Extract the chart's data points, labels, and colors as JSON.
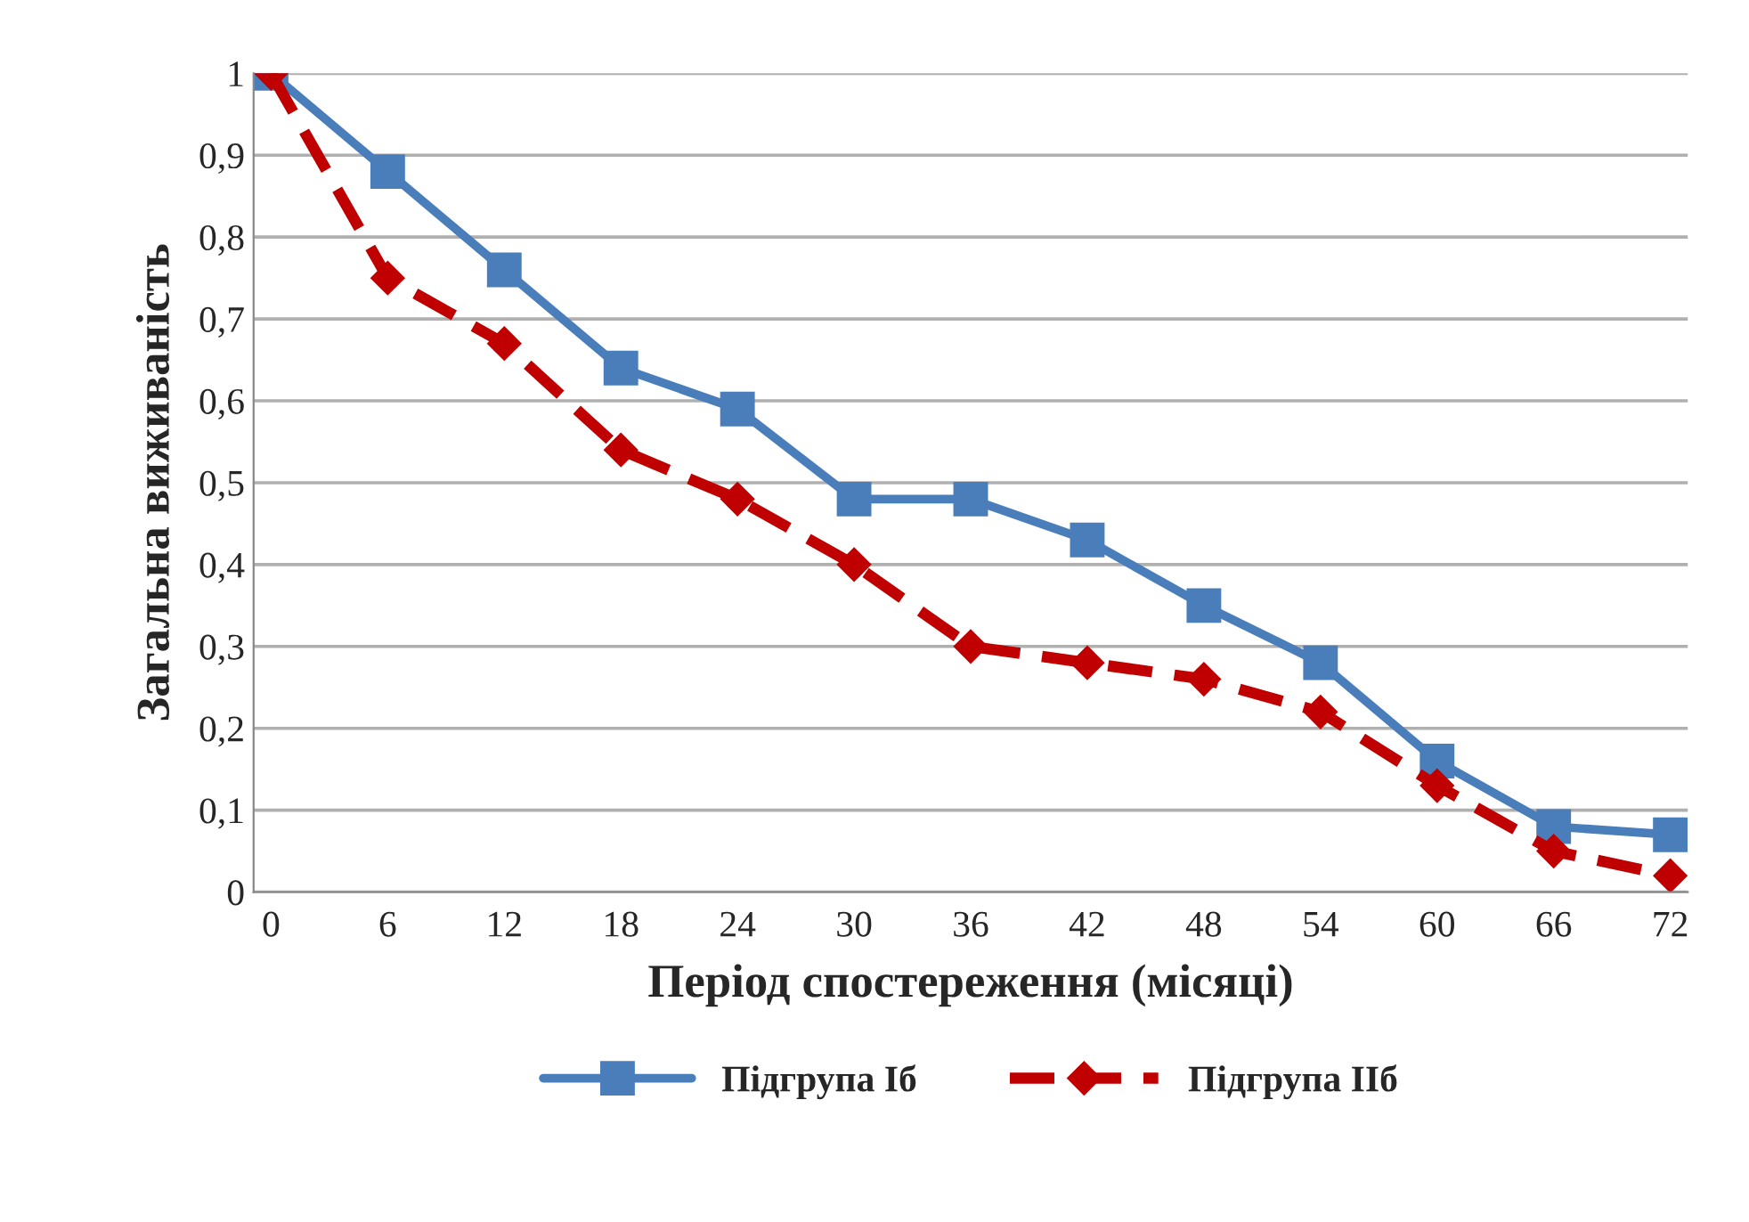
{
  "chart_data": {
    "type": "line",
    "xlabel": "Період спостереження (місяці)",
    "ylabel": "Загальна виживаність",
    "categories": [
      "0",
      "6",
      "12",
      "18",
      "24",
      "30",
      "36",
      "42",
      "48",
      "54",
      "60",
      "66",
      "72"
    ],
    "series": [
      {
        "name": "Підгрупа Іб",
        "color": "#4a7ebb",
        "marker": "square",
        "line_style": "solid",
        "values": [
          1,
          0.88,
          0.76,
          0.64,
          0.59,
          0.48,
          0.48,
          0.43,
          0.35,
          0.28,
          0.16,
          0.08,
          0.07
        ]
      },
      {
        "name": "Підгрупа ІІб",
        "color": "#c00000",
        "marker": "diamond",
        "line_style": "dashed",
        "values": [
          1,
          0.75,
          0.67,
          0.54,
          0.48,
          0.4,
          0.3,
          0.28,
          0.26,
          0.22,
          0.13,
          0.05,
          0.02
        ]
      }
    ],
    "ylim": [
      0,
      1
    ],
    "yticks": [
      0,
      {
        "value": 0.1,
        "label": "0,1"
      },
      {
        "value": 0.2,
        "label": "0,2"
      },
      {
        "value": 0.3,
        "label": "0,3"
      },
      {
        "value": 0.4,
        "label": "0,4"
      },
      {
        "value": 0.5,
        "label": "0,5"
      },
      {
        "value": 0.6,
        "label": "0,6"
      },
      {
        "value": 0.7,
        "label": "0,7"
      },
      {
        "value": 0.8,
        "label": "0,8"
      },
      {
        "value": 0.9,
        "label": "0,9"
      },
      1
    ],
    "grid": "y",
    "legend": "bottom"
  }
}
